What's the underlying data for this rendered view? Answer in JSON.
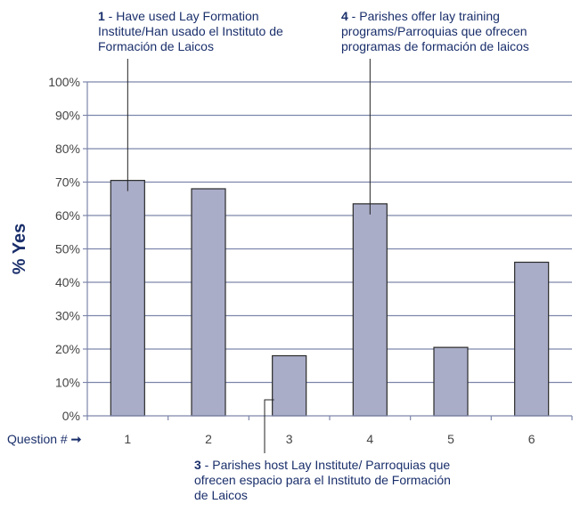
{
  "colors": {
    "bar_fill": "#a9adc8",
    "bar_stroke": "#2b2b2b",
    "grid": "#7d86ab",
    "text": "#1a2f6b",
    "axis_text": "#444444"
  },
  "chart_data": {
    "type": "bar",
    "ylabel": "% Yes",
    "xlabel": "Question #",
    "xlabel_arrow": "➞",
    "categories": [
      "1",
      "2",
      "3",
      "4",
      "5",
      "6"
    ],
    "values": [
      70.5,
      68,
      18,
      63.5,
      20.5,
      46
    ],
    "yticks": [
      "0%",
      "10%",
      "20%",
      "30%",
      "40%",
      "50%",
      "60%",
      "70%",
      "80%",
      "90%",
      "100%"
    ],
    "ylim": [
      0,
      100
    ],
    "grid": true,
    "annotations": [
      {
        "number": "1",
        "text": " - Have used Lay Formation Institute/Han usado el Instituto de Formación de Laicos",
        "category": "1"
      },
      {
        "number": "4",
        "text": " - Parishes offer lay training programs/Parroquias que ofrecen programas de formación de laicos",
        "category": "4"
      },
      {
        "number": "3",
        "text": " - Parishes host Lay Institute/ Parroquias que ofrecen espacio para el Instituto de Formación de Laicos",
        "category": "3"
      }
    ]
  }
}
